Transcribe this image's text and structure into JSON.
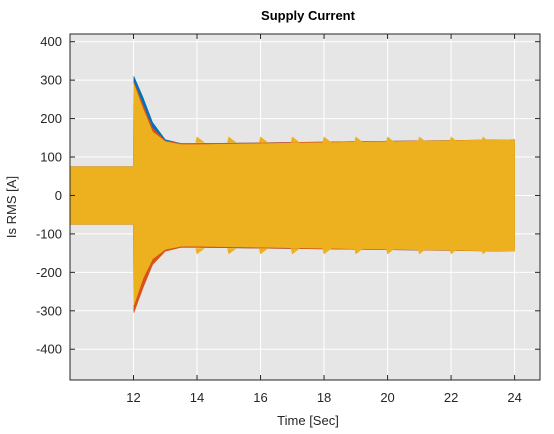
{
  "chart_data": {
    "type": "line",
    "title": "Supply Current",
    "xlabel": "Time [Sec]",
    "ylabel": "Is RMS [A]",
    "xlim": [
      10,
      24.8
    ],
    "ylim": [
      -480,
      420
    ],
    "xticks": [
      12,
      14,
      16,
      18,
      20,
      22,
      24
    ],
    "yticks": [
      400,
      300,
      200,
      100,
      0,
      -100,
      -200,
      -300,
      -400
    ],
    "grid": true,
    "legend": "none",
    "colors": {
      "plot_bg": "#e6e6e6",
      "grid": "#ffffff",
      "series_1": "#0072bd",
      "series_2": "#d95319",
      "series_3": "#edb120"
    },
    "series": [
      {
        "color": "#0072bd",
        "envelope": [
          {
            "x": 10,
            "upper": 75,
            "lower": -75
          },
          {
            "x": 12,
            "upper": 75,
            "lower": -75
          },
          {
            "x": 12.01,
            "upper": 310,
            "lower": -280
          },
          {
            "x": 12.3,
            "upper": 255,
            "lower": -230
          },
          {
            "x": 12.6,
            "upper": 190,
            "lower": -170
          },
          {
            "x": 13.0,
            "upper": 145,
            "lower": -140
          },
          {
            "x": 13.5,
            "upper": 135,
            "lower": -135
          },
          {
            "x": 14.0,
            "upper": 135,
            "lower": -135
          },
          {
            "x": 24.0,
            "upper": 145,
            "lower": -145
          }
        ]
      },
      {
        "color": "#d95319",
        "envelope": [
          {
            "x": 10,
            "upper": 75,
            "lower": -75
          },
          {
            "x": 12,
            "upper": 75,
            "lower": -75
          },
          {
            "x": 12.01,
            "upper": 295,
            "lower": -305
          },
          {
            "x": 12.3,
            "upper": 235,
            "lower": -240
          },
          {
            "x": 12.6,
            "upper": 175,
            "lower": -180
          },
          {
            "x": 13.0,
            "upper": 142,
            "lower": -145
          },
          {
            "x": 13.5,
            "upper": 135,
            "lower": -135
          },
          {
            "x": 14.0,
            "upper": 135,
            "lower": -135
          },
          {
            "x": 24.0,
            "upper": 145,
            "lower": -145
          }
        ]
      },
      {
        "color": "#edb120",
        "envelope": [
          {
            "x": 10,
            "upper": 75,
            "lower": -75
          },
          {
            "x": 12,
            "upper": 75,
            "lower": -75
          },
          {
            "x": 12.01,
            "upper": 290,
            "lower": -285
          },
          {
            "x": 12.3,
            "upper": 225,
            "lower": -215
          },
          {
            "x": 12.6,
            "upper": 165,
            "lower": -165
          },
          {
            "x": 13.0,
            "upper": 140,
            "lower": -140
          },
          {
            "x": 13.5,
            "upper": 132,
            "lower": -132
          },
          {
            "x": 14.0,
            "upper": 132,
            "lower": -132
          },
          {
            "x": 24.0,
            "upper": 145,
            "lower": -145
          }
        ]
      }
    ],
    "spikes": {
      "x": [
        14,
        15,
        16,
        17,
        18,
        19,
        20,
        21,
        22,
        23
      ],
      "upper": 152,
      "lower": -152
    }
  }
}
